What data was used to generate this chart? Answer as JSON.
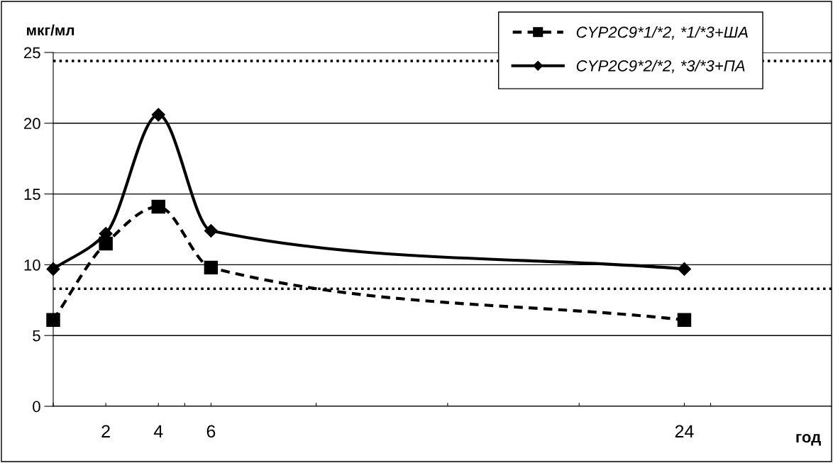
{
  "chart_data": {
    "type": "line",
    "xlabel": "год",
    "ylabel": "мкг/мл",
    "x": [
      0,
      2,
      4,
      6,
      24
    ],
    "series": [
      {
        "name": "CYP2C9*1/*2, *1/*3+ША",
        "color": "#000000",
        "values": [
          6.1,
          11.5,
          14.1,
          9.8,
          6.1
        ],
        "marker": "square",
        "line_style": "dashed"
      },
      {
        "name": "CYP2C9*2/*2, *3/*3+ПА",
        "color": "#000000",
        "values": [
          9.7,
          12.2,
          20.6,
          12.4,
          9.7
        ],
        "marker": "diamond",
        "line_style": "solid"
      }
    ],
    "xlim": [
      0,
      29.6
    ],
    "xticks": [
      {
        "value": 0,
        "label": null
      },
      {
        "value": 2,
        "label": "2"
      },
      {
        "value": 4,
        "label": "4"
      },
      {
        "value": 5,
        "label": null
      },
      {
        "value": 6,
        "label": "6"
      },
      {
        "value": 10,
        "label": null
      },
      {
        "value": 15,
        "label": null
      },
      {
        "value": 20,
        "label": null
      },
      {
        "value": 24,
        "label": "24"
      },
      {
        "value": 25,
        "label": null
      }
    ],
    "ylim": [
      0,
      25
    ],
    "yticks": [
      0,
      5,
      10,
      15,
      20,
      25
    ],
    "ref_lines": [
      {
        "axis": "y",
        "value": 24.4,
        "label": null,
        "color": "#000000",
        "line_style": "dotted"
      },
      {
        "axis": "y",
        "value": 8.3,
        "label": null,
        "color": "#000000",
        "line_style": "dotted"
      }
    ],
    "grid": "y",
    "legend": "top right"
  }
}
